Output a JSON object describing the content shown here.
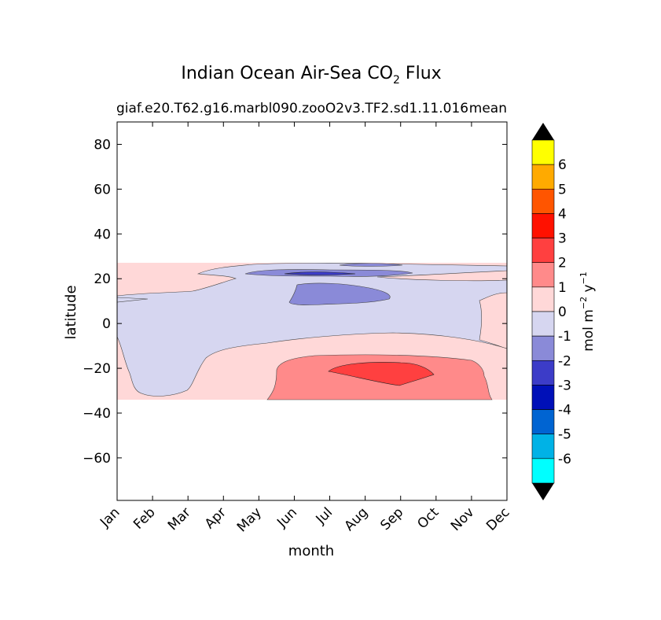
{
  "chart_data": {
    "type": "contourf",
    "title_main": "Indian Ocean Air-Sea CO",
    "title_sub": "2",
    "title_end": " Flux",
    "subtitle_left": "giaf.e20.T62.g16.marbl090.zooO2v3.TF2.sd1.11.016",
    "subtitle_right": "mean",
    "xlabel": "month",
    "ylabel": "latitude",
    "x_ticks": [
      "Jan",
      "Feb",
      "Mar",
      "Apr",
      "May",
      "Jun",
      "Jul",
      "Aug",
      "Sep",
      "Oct",
      "Nov",
      "Dec"
    ],
    "y_ticks": [
      80,
      60,
      40,
      20,
      0,
      -20,
      -40,
      -60
    ],
    "y_tick_labels": [
      "80",
      "60",
      "40",
      "20",
      "0",
      "−20",
      "−40",
      "−60"
    ],
    "ylim": [
      -79,
      90
    ],
    "data_lat_range": [
      -34,
      27
    ],
    "colorbar": {
      "label_main": "mol m",
      "label_exp1": "−2",
      "label_mid": "  y",
      "label_exp2": "−1",
      "tick_labels": [
        "6",
        "5",
        "4",
        "3",
        "2",
        "1",
        "0",
        "-1",
        "-2",
        "-3",
        "-4",
        "-5",
        "-6"
      ],
      "levels_top_to_bottom": [
        7,
        6,
        5,
        4,
        3,
        2,
        1,
        0,
        -1,
        -2,
        -3,
        -4,
        -5,
        -6,
        -7
      ],
      "colors_top_to_bottom": [
        "#ffff00",
        "#ffaa00",
        "#ff5500",
        "#ff1100",
        "#ff4040",
        "#ff8a8a",
        "#ffd8d8",
        "#d6d6f0",
        "#8a8ad8",
        "#3c3cc8",
        "#0010b8",
        "#0064d2",
        "#00b2e6",
        "#00ffff"
      ],
      "extend_colors": [
        "#000000",
        "#000000"
      ]
    },
    "regions": {
      "background_positive": "#ffd8d8",
      "negative_0_to_minus1": "#d6d6f0",
      "negative_1_to_minus2": "#8a8ad8",
      "negative_2_to_minus3": "#3c3cc8",
      "positive_1_to_2": "#ff8a8a",
      "positive_2_to_3": "#ff4040"
    }
  }
}
